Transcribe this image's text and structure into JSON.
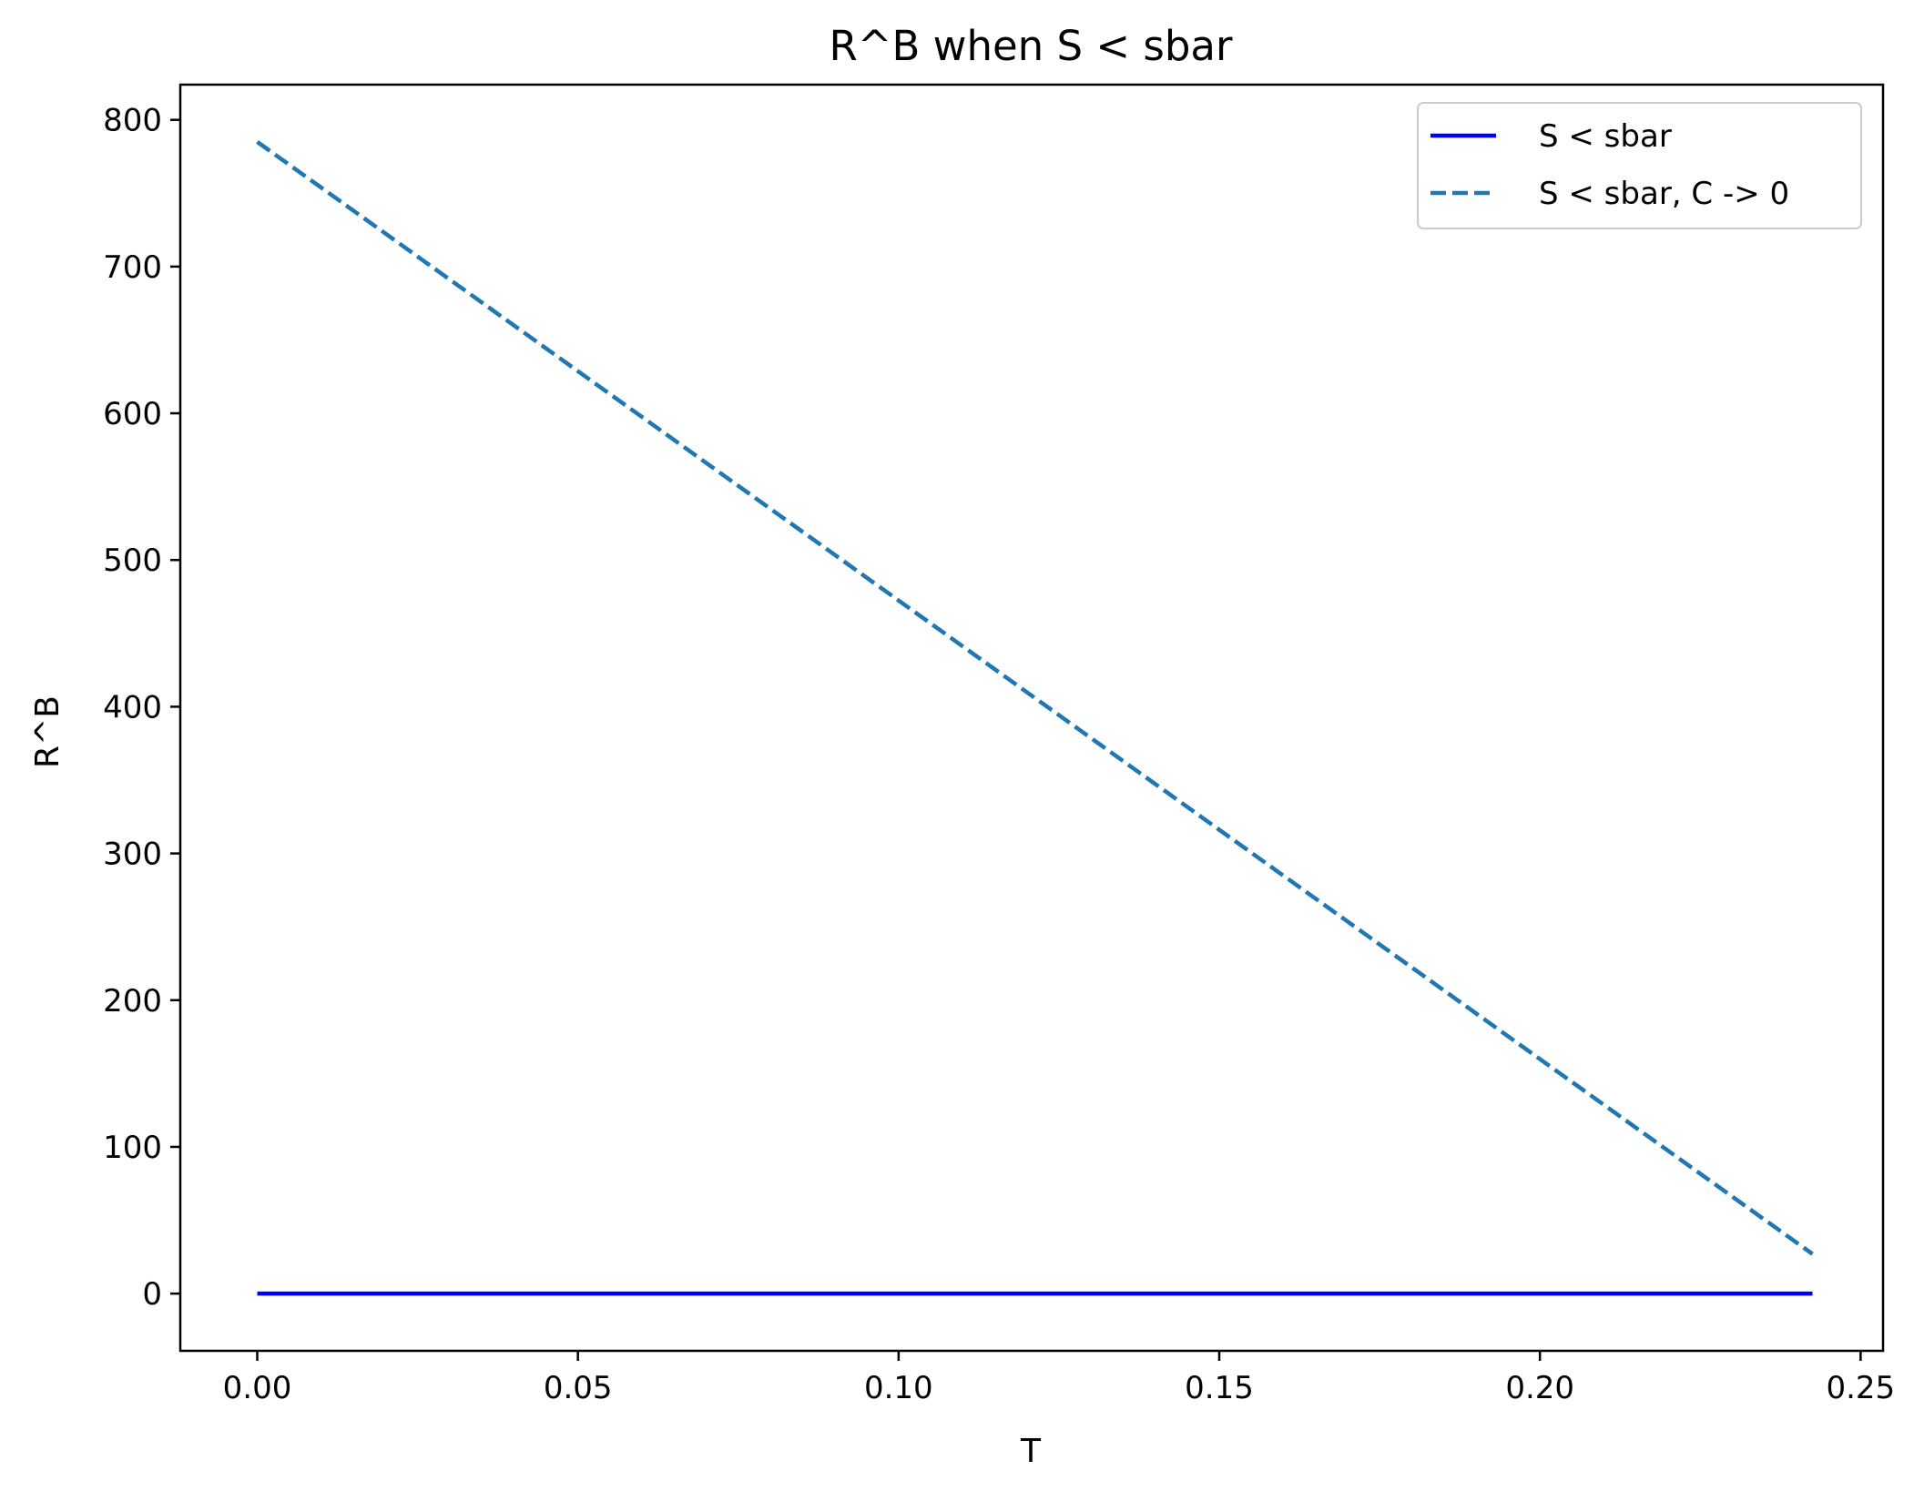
{
  "chart_data": {
    "type": "line",
    "title": "R^B when S < sbar",
    "xlabel": "T",
    "ylabel": "R^B",
    "xlim": [
      -0.012,
      0.2535
    ],
    "ylim": [
      -39,
      824
    ],
    "xticks": [
      0.0,
      0.05,
      0.1,
      0.15,
      0.2,
      0.25
    ],
    "xtick_labels": [
      "0.00",
      "0.05",
      "0.10",
      "0.15",
      "0.20",
      "0.25"
    ],
    "yticks": [
      0,
      100,
      200,
      300,
      400,
      500,
      600,
      700,
      800
    ],
    "ytick_labels": [
      "0",
      "100",
      "200",
      "300",
      "400",
      "500",
      "600",
      "700",
      "800"
    ],
    "grid": false,
    "legend_position": "top-right",
    "series": [
      {
        "name": "S < sbar",
        "color": "#0000ff",
        "style": "solid",
        "x": [
          0.0,
          0.2425
        ],
        "y": [
          0,
          0
        ]
      },
      {
        "name": "S < sbar, C -> 0",
        "color": "#1f77b4",
        "style": "dashed",
        "x": [
          0.0,
          0.2425
        ],
        "y": [
          785,
          27
        ]
      }
    ]
  }
}
